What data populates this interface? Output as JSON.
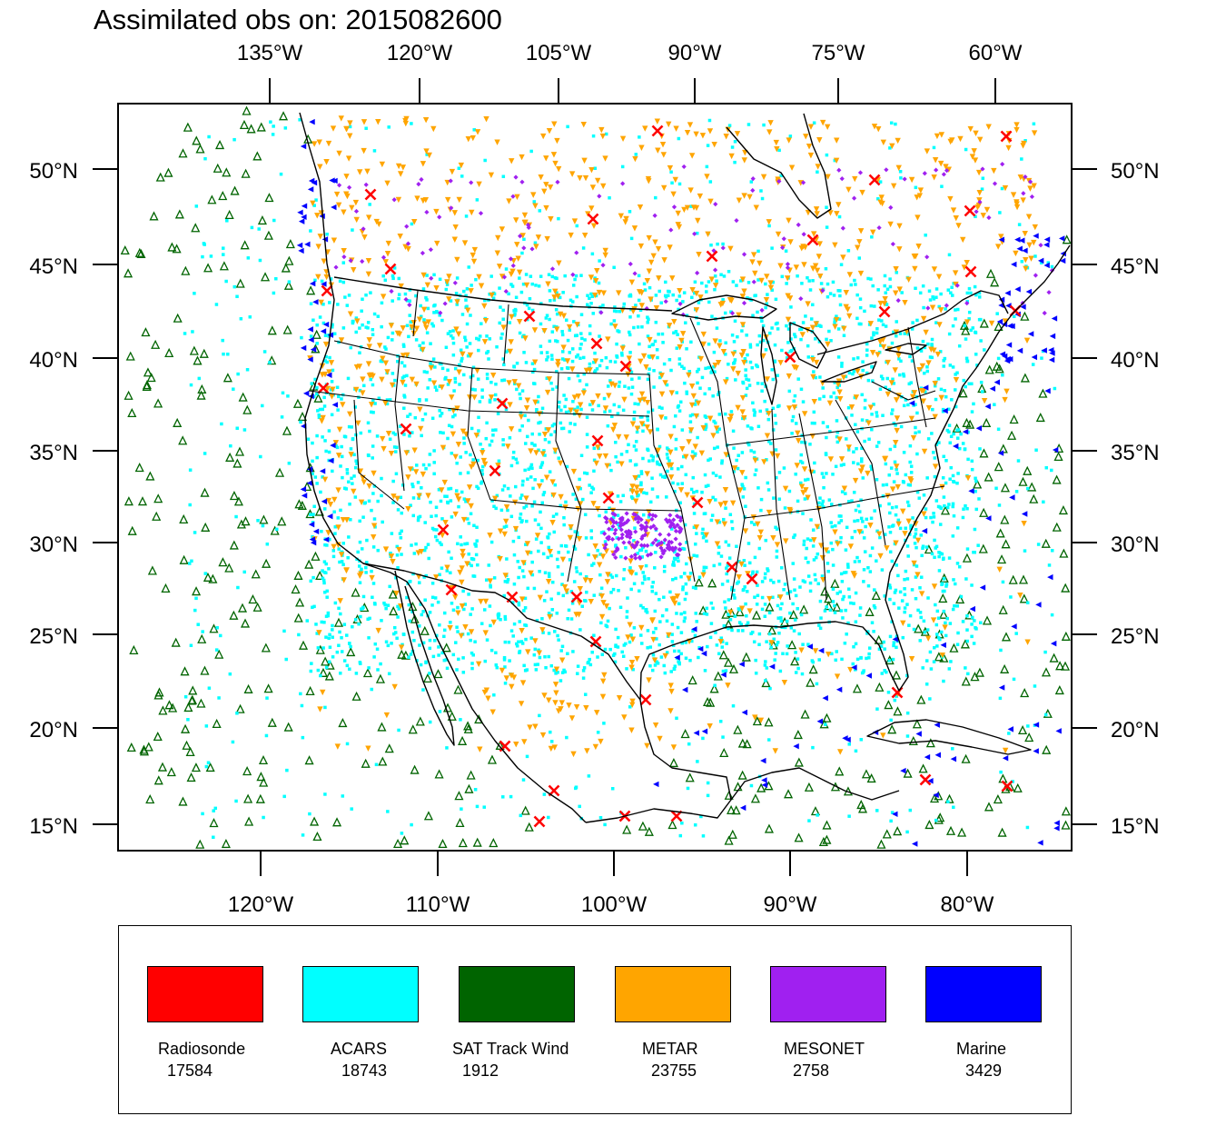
{
  "title": "Assimilated obs on: 2015082600",
  "axes": {
    "top_lon_labels": [
      "135°W",
      "120°W",
      "105°W",
      "90°W",
      "75°W",
      "60°W"
    ],
    "bottom_lon_labels": [
      "120°W",
      "110°W",
      "100°W",
      "90°W",
      "80°W"
    ],
    "lat_labels": [
      "50°N",
      "45°N",
      "40°N",
      "35°N",
      "30°N",
      "25°N",
      "20°N",
      "15°N"
    ]
  },
  "legend": {
    "items": [
      {
        "label": "Radiosonde",
        "count": "17584",
        "color": "#ff0000"
      },
      {
        "label": "ACARS",
        "count": "18743",
        "color": "#00ffff"
      },
      {
        "label": "SAT Track Wind",
        "count": "1912",
        "color": "#006400"
      },
      {
        "label": "METAR",
        "count": "23755",
        "color": "#ffa500"
      },
      {
        "label": "MESONET",
        "count": "2758",
        "color": "#a020f0"
      },
      {
        "label": "Marine",
        "count": "3429",
        "color": "#0000ff"
      }
    ]
  }
}
